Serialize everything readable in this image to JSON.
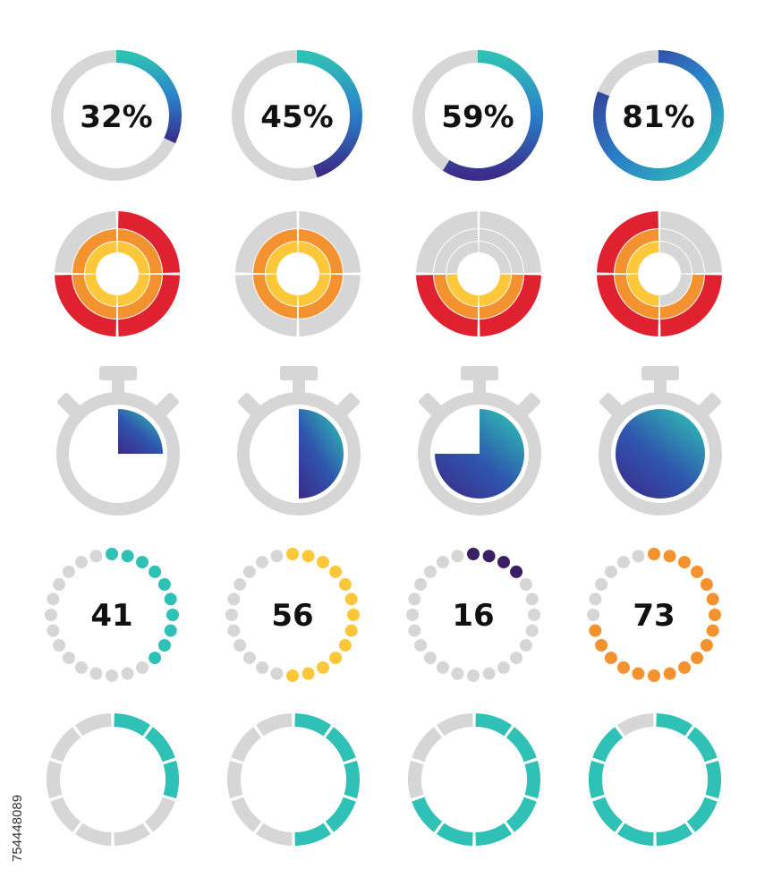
{
  "colors": {
    "track": "#d6d6d6",
    "teal": "#2fc1b5",
    "indigo": "#3a2d8a",
    "blue": "#2a7fc9",
    "red": "#e0212f",
    "orange": "#f3922f",
    "yellow": "#fdc73a",
    "purple": "#3b1f62",
    "white": "#ffffff"
  },
  "percent_rings": [
    {
      "label": "32%",
      "value": 32
    },
    {
      "label": "45%",
      "value": 45
    },
    {
      "label": "59%",
      "value": 59
    },
    {
      "label": "81%",
      "value": 81
    }
  ],
  "segment_rings": [
    {
      "active": [
        [
          0,
          1,
          2
        ],
        [
          0,
          1,
          2
        ],
        [
          0,
          1,
          2
        ],
        [
          0,
          1
        ]
      ]
    },
    {
      "active": [
        [
          0,
          1
        ],
        [
          0,
          1
        ],
        [
          0,
          1
        ],
        [
          0,
          1
        ]
      ]
    },
    {
      "active": [
        [],
        [
          0,
          1,
          2
        ],
        [
          0,
          1,
          2
        ],
        []
      ]
    },
    {
      "active": [
        [],
        [
          1,
          2
        ],
        [
          0,
          1,
          2
        ],
        [
          0,
          1,
          2
        ]
      ]
    }
  ],
  "stopwatches": [
    {
      "value": 25
    },
    {
      "value": 50
    },
    {
      "value": 75
    },
    {
      "value": 100
    }
  ],
  "dot_rings": [
    {
      "label": "41",
      "value": 41,
      "color": "teal"
    },
    {
      "label": "56",
      "value": 56,
      "color": "yellow"
    },
    {
      "label": "16",
      "value": 16,
      "color": "purple"
    },
    {
      "label": "73",
      "value": 73,
      "color": "orange"
    }
  ],
  "segment_bars": [
    {
      "value": 30
    },
    {
      "value": 50
    },
    {
      "value": 70
    },
    {
      "value": 90
    }
  ],
  "watermark": "754448089"
}
